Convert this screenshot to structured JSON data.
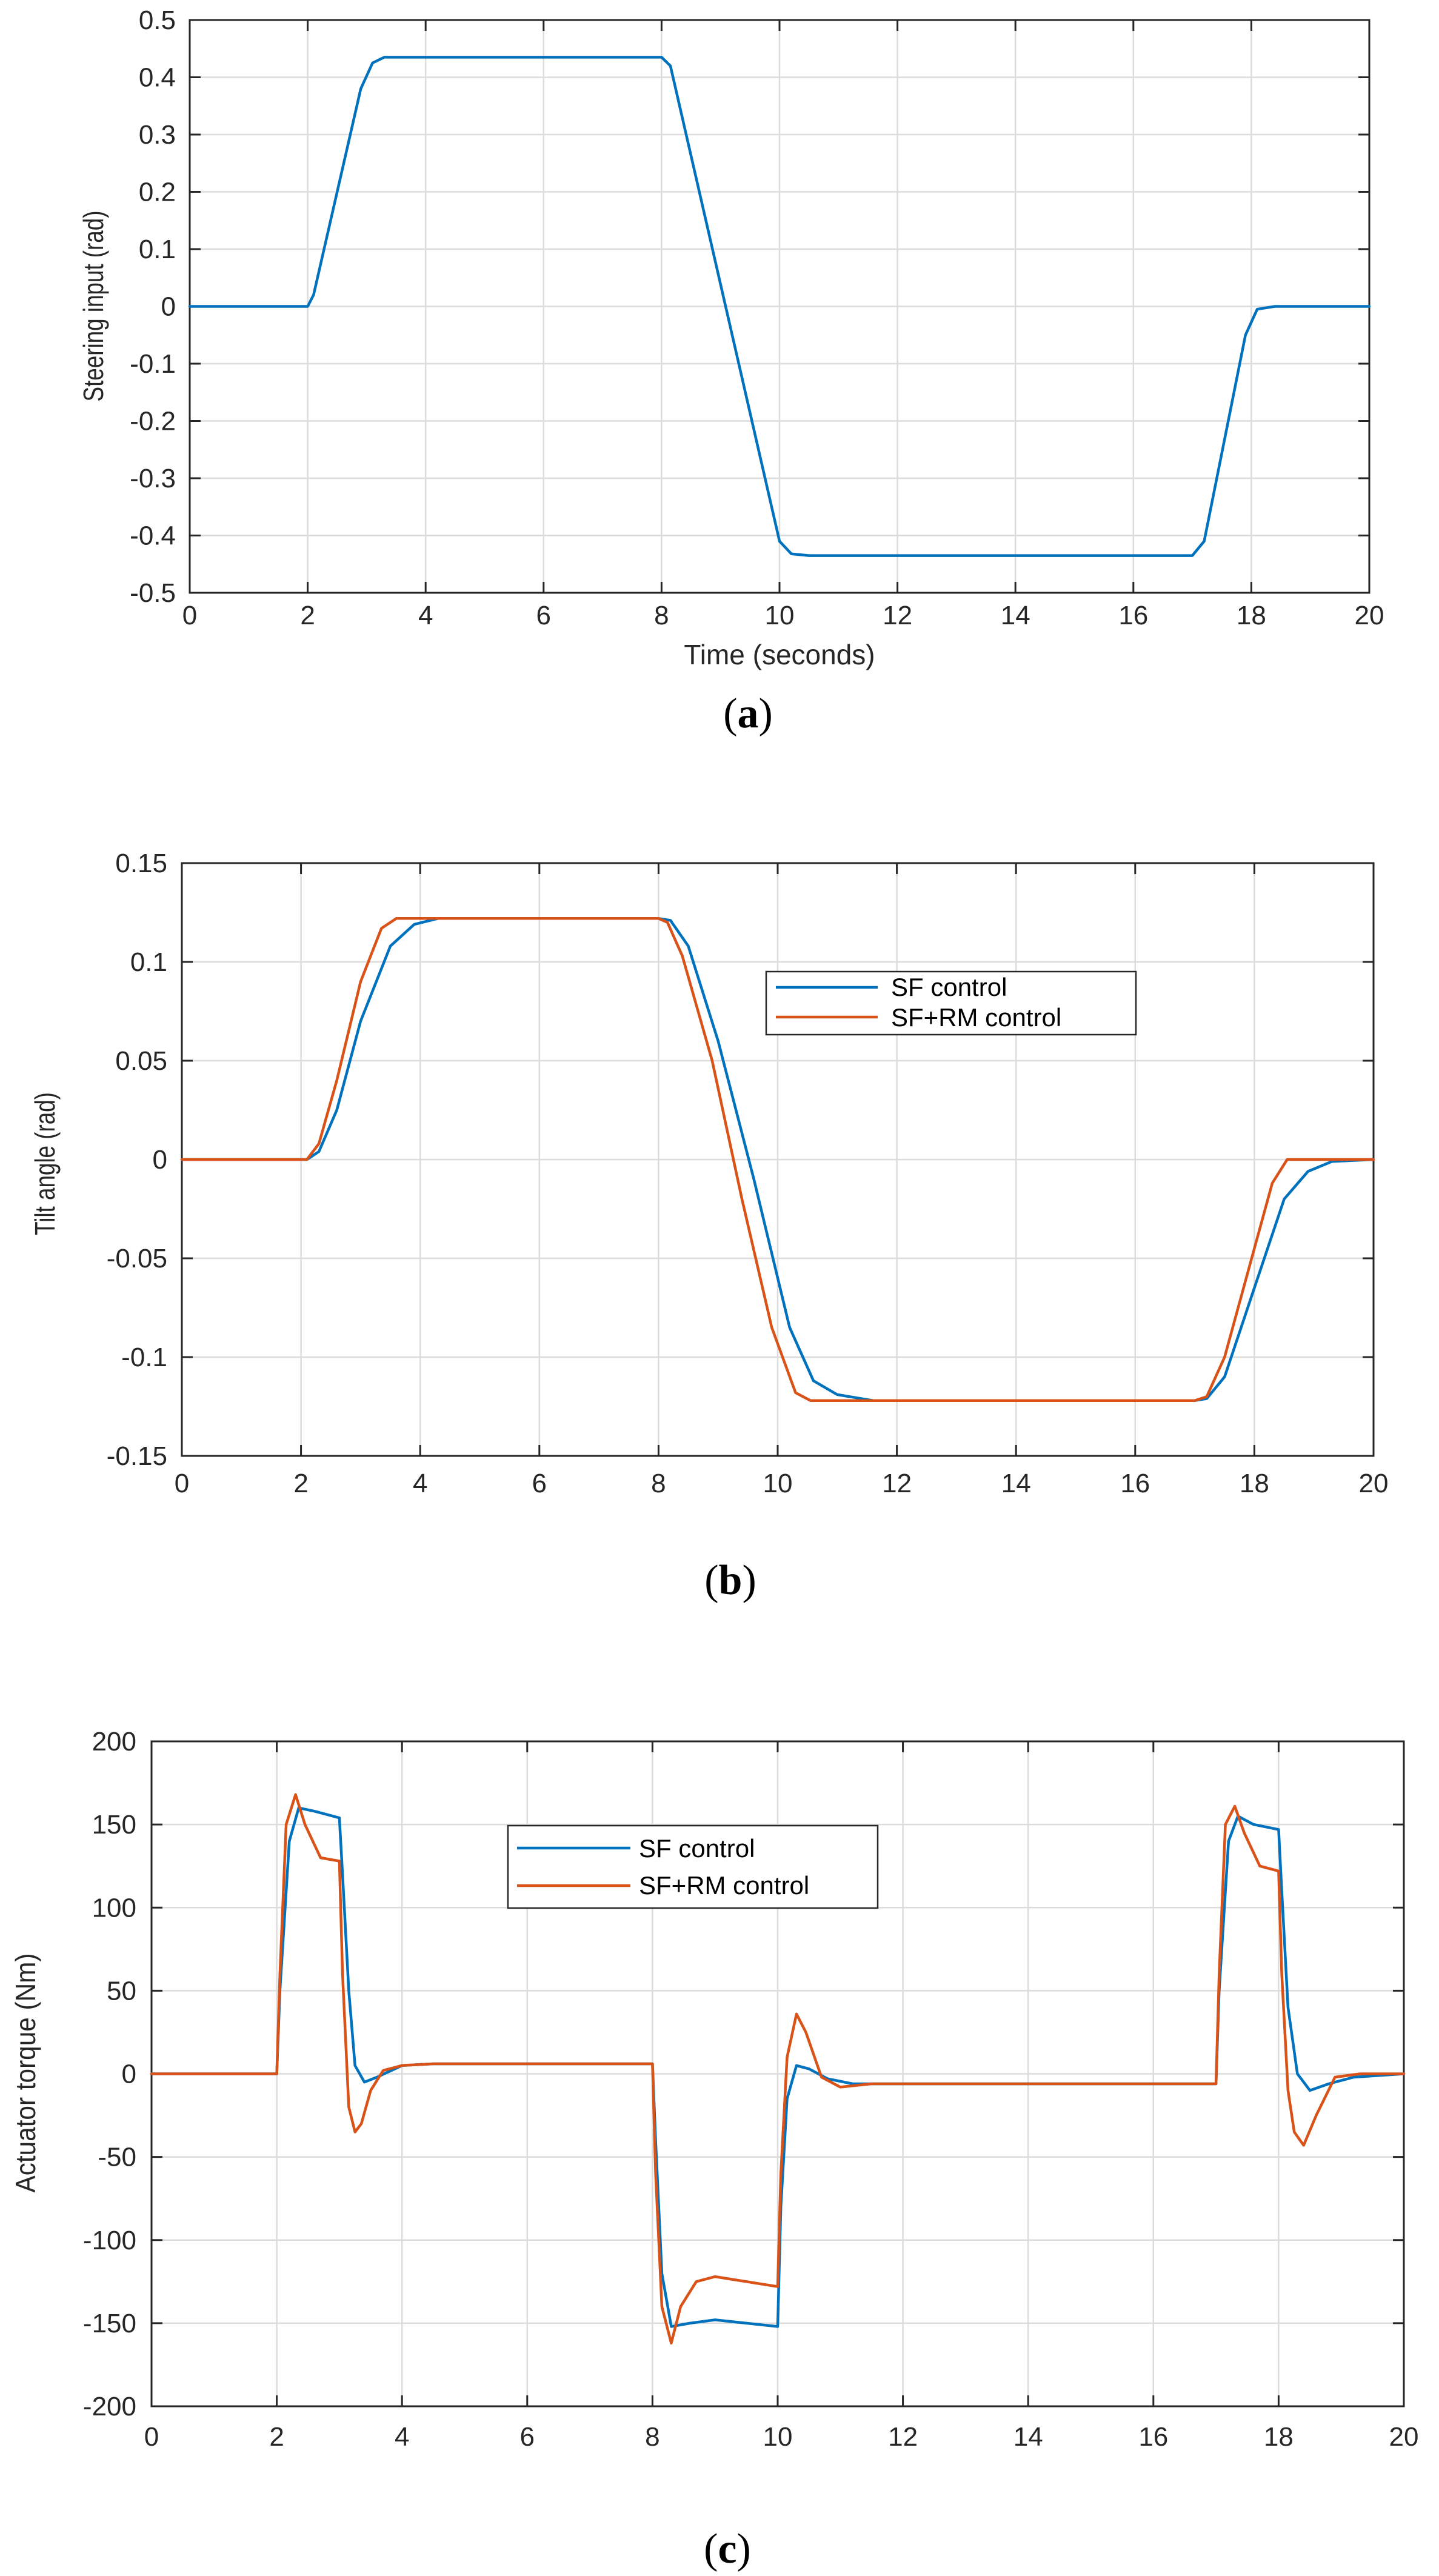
{
  "chart_data": [
    {
      "type": "line",
      "panel_caption": "a",
      "title": "",
      "xlabel": "Time (seconds)",
      "ylabel": "Steering input (rad)",
      "xlim": [
        0,
        20
      ],
      "ylim": [
        -0.5,
        0.5
      ],
      "x_ticks": [
        "0",
        "2",
        "4",
        "6",
        "8",
        "10",
        "12",
        "14",
        "16",
        "18",
        "20"
      ],
      "y_ticks": [
        "0.5",
        "0.4",
        "0.3",
        "0.2",
        "0.1",
        "0",
        "-0.1",
        "-0.2",
        "-0.3",
        "-0.4",
        "-0.5"
      ],
      "grid": true,
      "legend": null,
      "series": [
        {
          "name": "Steering input",
          "color": "#0072BD",
          "x": [
            0,
            2.0,
            2.1,
            2.9,
            3.1,
            3.3,
            8.0,
            8.15,
            10.0,
            10.2,
            10.5,
            17.0,
            17.2,
            17.9,
            18.1,
            18.4,
            20
          ],
          "y": [
            0,
            0,
            0.02,
            0.38,
            0.425,
            0.435,
            0.435,
            0.42,
            -0.41,
            -0.432,
            -0.435,
            -0.435,
            -0.41,
            -0.05,
            -0.005,
            0,
            0
          ]
        }
      ]
    },
    {
      "type": "line",
      "panel_caption": "b",
      "title": "",
      "xlabel": "",
      "ylabel": "Tilt angle (rad)",
      "xlim": [
        0,
        20
      ],
      "ylim": [
        -0.15,
        0.15
      ],
      "x_ticks": [
        "0",
        "2",
        "4",
        "6",
        "8",
        "10",
        "12",
        "14",
        "16",
        "18",
        "20"
      ],
      "y_ticks": [
        "0.15",
        "0.1",
        "0.05",
        "0",
        "-0.05",
        "-0.1",
        "-0.15"
      ],
      "grid": true,
      "legend": {
        "position": "top-center",
        "entries": [
          "SF control",
          "SF+RM control"
        ]
      },
      "series": [
        {
          "name": "SF control",
          "color": "#0072BD",
          "x": [
            0,
            2.1,
            2.3,
            2.6,
            3.0,
            3.5,
            3.9,
            4.3,
            8.0,
            8.2,
            8.5,
            9.0,
            9.6,
            10.2,
            10.6,
            11.0,
            11.6,
            17.0,
            17.2,
            17.5,
            18.0,
            18.5,
            18.9,
            19.3,
            20
          ],
          "y": [
            0,
            0,
            0.004,
            0.025,
            0.07,
            0.108,
            0.119,
            0.122,
            0.122,
            0.121,
            0.108,
            0.06,
            -0.01,
            -0.085,
            -0.112,
            -0.119,
            -0.122,
            -0.122,
            -0.121,
            -0.11,
            -0.065,
            -0.02,
            -0.006,
            -0.001,
            0
          ]
        },
        {
          "name": "SF+RM control",
          "color": "#D95319",
          "x": [
            0,
            2.1,
            2.3,
            2.6,
            3.0,
            3.35,
            3.6,
            3.9,
            8.0,
            8.15,
            8.4,
            8.9,
            9.4,
            9.9,
            10.3,
            10.55,
            10.8,
            17.0,
            17.2,
            17.5,
            18.0,
            18.3,
            18.55,
            18.8,
            20
          ],
          "y": [
            0,
            0,
            0.008,
            0.04,
            0.09,
            0.117,
            0.122,
            0.122,
            0.122,
            0.12,
            0.103,
            0.05,
            -0.02,
            -0.085,
            -0.118,
            -0.122,
            -0.122,
            -0.122,
            -0.12,
            -0.1,
            -0.045,
            -0.012,
            0,
            0,
            0
          ]
        }
      ]
    },
    {
      "type": "line",
      "panel_caption": "c",
      "title": "",
      "xlabel": "",
      "ylabel": "Actuator torque (Nm)",
      "xlim": [
        0,
        20
      ],
      "ylim": [
        -200,
        200
      ],
      "x_ticks": [
        "0",
        "2",
        "4",
        "6",
        "8",
        "10",
        "12",
        "14",
        "16",
        "18",
        "20"
      ],
      "y_ticks": [
        "200",
        "150",
        "100",
        "50",
        "0",
        "-50",
        "-100",
        "-150",
        "-200"
      ],
      "grid": true,
      "legend": {
        "position": "top-left",
        "entries": [
          "SF control",
          "SF+RM control"
        ]
      },
      "series": [
        {
          "name": "SF control",
          "color": "#0072BD",
          "x": [
            0,
            2.0,
            2.05,
            2.2,
            2.35,
            2.6,
            3.0,
            3.05,
            3.15,
            3.25,
            3.4,
            3.6,
            4.0,
            4.5,
            8.0,
            8.05,
            8.15,
            8.3,
            8.6,
            9.0,
            10.0,
            10.05,
            10.15,
            10.3,
            10.5,
            10.8,
            11.2,
            11.8,
            17.0,
            17.05,
            17.2,
            17.35,
            17.6,
            18.0,
            18.05,
            18.15,
            18.3,
            18.5,
            18.8,
            19.2,
            19.6,
            20
          ],
          "y": [
            0,
            0,
            50,
            140,
            160,
            158,
            154,
            120,
            50,
            5,
            -5,
            -2,
            5,
            6,
            6,
            -40,
            -120,
            -152,
            -150,
            -148,
            -152,
            -80,
            -15,
            5,
            3,
            -3,
            -6,
            -6,
            -6,
            50,
            140,
            155,
            150,
            147,
            110,
            40,
            0,
            -10,
            -6,
            -2,
            -1,
            0
          ]
        },
        {
          "name": "SF+RM control",
          "color": "#D95319",
          "x": [
            0,
            2.0,
            2.05,
            2.15,
            2.3,
            2.45,
            2.7,
            3.0,
            3.05,
            3.15,
            3.25,
            3.35,
            3.5,
            3.7,
            4.0,
            4.5,
            8.0,
            8.05,
            8.15,
            8.3,
            8.45,
            8.7,
            9.0,
            10.0,
            10.05,
            10.15,
            10.3,
            10.45,
            10.7,
            11.0,
            11.5,
            12.0,
            17.0,
            17.05,
            17.15,
            17.3,
            17.45,
            17.7,
            18.0,
            18.05,
            18.15,
            18.25,
            18.4,
            18.6,
            18.9,
            19.3,
            20
          ],
          "y": [
            0,
            0,
            60,
            150,
            168,
            150,
            130,
            128,
            60,
            -20,
            -35,
            -30,
            -10,
            2,
            5,
            6,
            6,
            -60,
            -140,
            -162,
            -140,
            -125,
            -122,
            -128,
            -60,
            10,
            36,
            25,
            -2,
            -8,
            -6,
            -6,
            -6,
            60,
            150,
            161,
            145,
            125,
            122,
            60,
            -10,
            -35,
            -43,
            -25,
            -2,
            0,
            0
          ]
        }
      ]
    }
  ]
}
